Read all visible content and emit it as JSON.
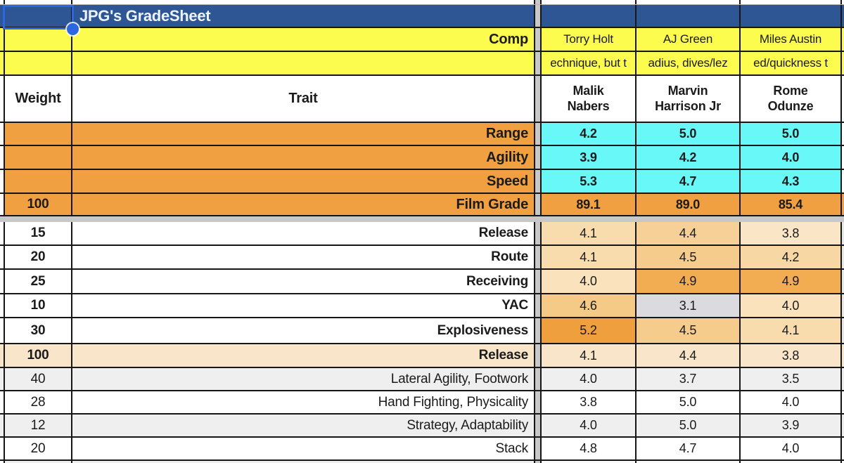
{
  "app": {
    "title": "JPG's GradeSheet"
  },
  "comp": {
    "label": "Comp",
    "names": [
      "Torry Holt",
      "AJ Green",
      "Miles Austin"
    ]
  },
  "notes": {
    "fragments": [
      "echnique, but t",
      "adius, dives/lez",
      "ed/quickness t"
    ]
  },
  "header": {
    "weight": "Weight",
    "trait": "Trait",
    "players": [
      "Malik\nNabers",
      "Marvin\nHarrison Jr",
      "Rome\nOdunze"
    ]
  },
  "colors": {
    "header_blue": "#2E5694",
    "yellow": "#FCFC4E",
    "orange": "#F0A040",
    "cyan": "#68F8F8",
    "peach": "#F9E5CA",
    "band_gray": "#EFEFEF",
    "divider_gray": "#C8C8C8",
    "grid_black": "#161616",
    "selection_blue": "#2B67E0",
    "low_value_gray": "#DBDBDF"
  },
  "table": {
    "rows": [
      {
        "kind": "data",
        "h": 33,
        "weight": "",
        "weight_bold": false,
        "trait": "Range",
        "trait_bold": true,
        "trait_big": true,
        "row_bg": "#F0A040",
        "sliver_bg": "#FFFFFF",
        "values": [
          "4.2",
          "5.0",
          "5.0"
        ],
        "values_bold": true,
        "value_bg": [
          "#68F8F8",
          "#68F8F8",
          "#68F8F8"
        ],
        "rsliver_bg": "#FFFFFF"
      },
      {
        "kind": "data",
        "h": 34,
        "weight": "",
        "weight_bold": false,
        "trait": "Agility",
        "trait_bold": true,
        "trait_big": true,
        "row_bg": "#F0A040",
        "sliver_bg": "#FFFFFF",
        "values": [
          "3.9",
          "4.2",
          "4.0"
        ],
        "values_bold": true,
        "value_bg": [
          "#68F8F8",
          "#68F8F8",
          "#68F8F8"
        ],
        "rsliver_bg": "#FFFFFF"
      },
      {
        "kind": "data",
        "h": 34,
        "weight": "",
        "weight_bold": false,
        "trait": "Speed",
        "trait_bold": true,
        "trait_big": true,
        "row_bg": "#F0A040",
        "sliver_bg": "#FFFFFF",
        "values": [
          "5.3",
          "4.7",
          "4.3"
        ],
        "values_bold": true,
        "value_bg": [
          "#68F8F8",
          "#68F8F8",
          "#68F8F8"
        ],
        "rsliver_bg": "#FFFFFF"
      },
      {
        "kind": "data",
        "h": 32,
        "weight": "100",
        "weight_bold": true,
        "trait": "Film Grade",
        "trait_bold": true,
        "trait_big": true,
        "row_bg": "#F0A040",
        "sliver_bg": "#FFFFFF",
        "values": [
          "89.1",
          "89.0",
          "85.4"
        ],
        "values_bold": true,
        "value_bg": [
          "#F0A040",
          "#F0A040",
          "#F0A040"
        ],
        "rsliver_bg": "#F0A040"
      },
      {
        "kind": "hdiv",
        "h": 8
      },
      {
        "kind": "data",
        "h": 34,
        "weight": "15",
        "weight_bold": true,
        "trait": "Release",
        "trait_bold": true,
        "row_bg": "#FFFFFF",
        "sliver_bg": "#FFFFFF",
        "values": [
          "4.1",
          "4.4",
          "3.8"
        ],
        "values_bold": false,
        "value_bg": [
          "#F8DCAE",
          "#F6D096",
          "#FAE6C6"
        ],
        "rsliver_bg": "#E8E8E8"
      },
      {
        "kind": "data",
        "h": 34,
        "weight": "20",
        "weight_bold": true,
        "trait": "Route",
        "trait_bold": true,
        "row_bg": "#FFFFFF",
        "sliver_bg": "#FFFFFF",
        "values": [
          "4.1",
          "4.5",
          "4.2"
        ],
        "values_bold": false,
        "value_bg": [
          "#F8DCAE",
          "#F5CC8C",
          "#F7D8A4"
        ],
        "rsliver_bg": "#E8E8E8"
      },
      {
        "kind": "data",
        "h": 35,
        "weight": "25",
        "weight_bold": true,
        "trait": "Receiving",
        "trait_bold": true,
        "row_bg": "#FFFFFF",
        "sliver_bg": "#FFFFFF",
        "values": [
          "4.0",
          "4.9",
          "4.9"
        ],
        "values_bold": false,
        "value_bg": [
          "#F9E2BC",
          "#F2AD52",
          "#F2AD52"
        ],
        "rsliver_bg": "#E8E8E8"
      },
      {
        "kind": "data",
        "h": 34,
        "weight": "10",
        "weight_bold": true,
        "trait": "YAC",
        "trait_bold": true,
        "row_bg": "#FFFFFF",
        "sliver_bg": "#FFFFFF",
        "values": [
          "4.6",
          "3.1",
          "4.0"
        ],
        "values_bold": false,
        "value_bg": [
          "#F5CA86",
          "#DBDBDF",
          "#F9E2BC"
        ],
        "rsliver_bg": "#E8E8E8"
      },
      {
        "kind": "data",
        "h": 37,
        "weight": "30",
        "weight_bold": true,
        "trait": "Explosiveness",
        "trait_bold": true,
        "row_bg": "#FFFFFF",
        "sliver_bg": "#FFFFFF",
        "values": [
          "5.2",
          "4.5",
          "4.1"
        ],
        "values_bold": false,
        "value_bg": [
          "#EF9F3E",
          "#F5CC8C",
          "#F8DCAE"
        ],
        "rsliver_bg": "#E8E8E8"
      },
      {
        "kind": "data",
        "h": 34,
        "weight": "100",
        "weight_bold": true,
        "trait": "Release",
        "trait_bold": true,
        "row_bg": "#F9E5CA",
        "sliver_bg": "#F9E5CA",
        "values": [
          "4.1",
          "4.4",
          "3.8"
        ],
        "values_bold": false,
        "value_bg": [
          "#F9E5CA",
          "#F9E5CA",
          "#F9E5CA"
        ],
        "rsliver_bg": "#F6E7D0"
      },
      {
        "kind": "data",
        "h": 33,
        "weight": "40",
        "weight_bold": false,
        "trait": "Lateral Agility, Footwork",
        "trait_bold": false,
        "row_bg": "#EFEFEF",
        "sliver_bg": "#EFEFEF",
        "values": [
          "4.0",
          "3.7",
          "3.5"
        ],
        "values_bold": false,
        "value_bg": [
          "#EFEFEF",
          "#EFEFEF",
          "#EFEFEF"
        ],
        "rsliver_bg": "#EFEFEF"
      },
      {
        "kind": "data",
        "h": 33,
        "weight": "28",
        "weight_bold": false,
        "trait": "Hand Fighting, Physicality",
        "trait_bold": false,
        "row_bg": "#FFFFFF",
        "sliver_bg": "#FFFFFF",
        "values": [
          "3.8",
          "5.0",
          "4.0"
        ],
        "values_bold": false,
        "value_bg": [
          "#FFFFFF",
          "#FFFFFF",
          "#FFFFFF"
        ],
        "rsliver_bg": "#FFFFFF"
      },
      {
        "kind": "data",
        "h": 33,
        "weight": "12",
        "weight_bold": false,
        "trait": "Strategy, Adaptability",
        "trait_bold": false,
        "row_bg": "#EFEFEF",
        "sliver_bg": "#EFEFEF",
        "values": [
          "4.0",
          "5.0",
          "3.9"
        ],
        "values_bold": false,
        "value_bg": [
          "#EFEFEF",
          "#EFEFEF",
          "#EFEFEF"
        ],
        "rsliver_bg": "#EFEFEF"
      },
      {
        "kind": "data",
        "h": 33,
        "weight": "20",
        "weight_bold": false,
        "trait": "Stack",
        "trait_bold": false,
        "row_bg": "#FFFFFF",
        "sliver_bg": "#FFFFFF",
        "values": [
          "4.8",
          "4.7",
          "4.0"
        ],
        "values_bold": false,
        "value_bg": [
          "#FFFFFF",
          "#FFFFFF",
          "#FFFFFF"
        ],
        "rsliver_bg": "#FFFFFF"
      },
      {
        "kind": "data",
        "h": 3,
        "nb": true,
        "weight": "",
        "weight_bold": false,
        "trait": "",
        "trait_bold": false,
        "row_bg": "#EFEFEF",
        "sliver_bg": "#FFFFFF",
        "values": [
          "",
          "",
          ""
        ],
        "values_bold": false,
        "value_bg": [
          "#FAFAFA",
          "#FAFAFA",
          "#FAFAFA"
        ],
        "rsliver_bg": "#FAFAFA"
      }
    ]
  }
}
